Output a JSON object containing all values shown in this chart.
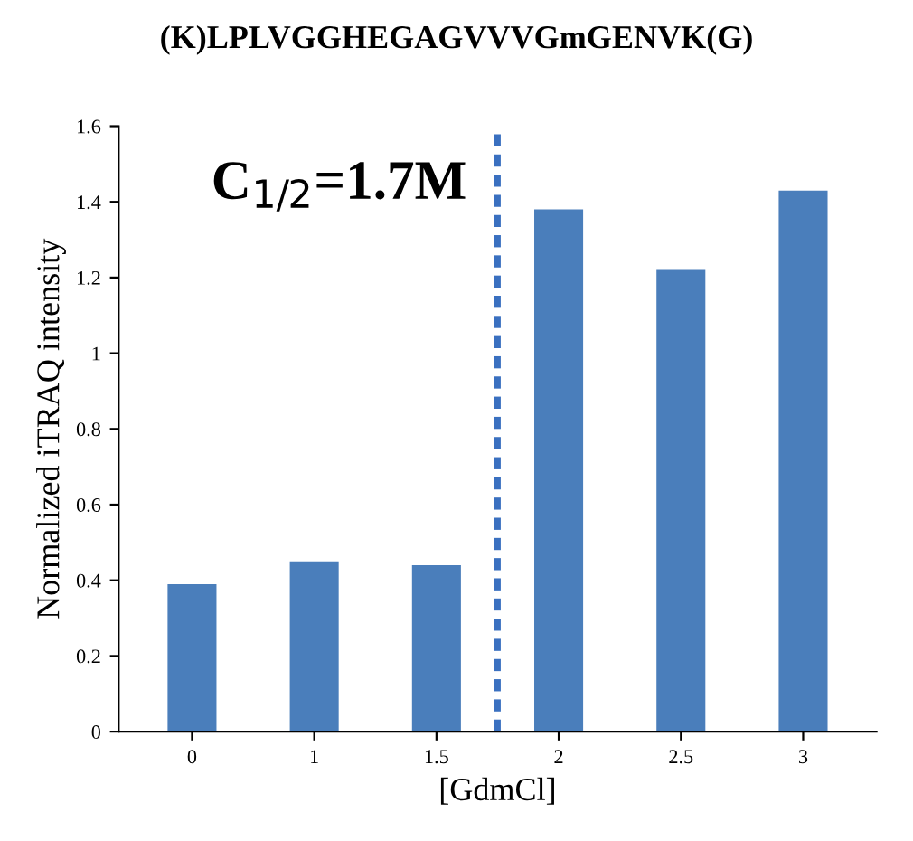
{
  "chart_data": {
    "type": "bar",
    "title": "(K)LPLVGGHEGAGVVVGmGENVK(G)",
    "xlabel": "[GdmCl]",
    "ylabel": "Normalized iTRAQ intensity",
    "categories": [
      "0",
      "1",
      "1.5",
      "2",
      "2.5",
      "3"
    ],
    "values": [
      0.39,
      0.45,
      0.44,
      1.38,
      1.22,
      1.43
    ],
    "color": "#4a7ebb",
    "ylim": [
      0,
      1.6
    ],
    "yticks": [
      0,
      0.2,
      0.4,
      0.6,
      0.8,
      1,
      1.2,
      1.4,
      1.6
    ],
    "grid": false,
    "annotations": [
      "C$_{1/2}$=1.7M"
    ]
  }
}
